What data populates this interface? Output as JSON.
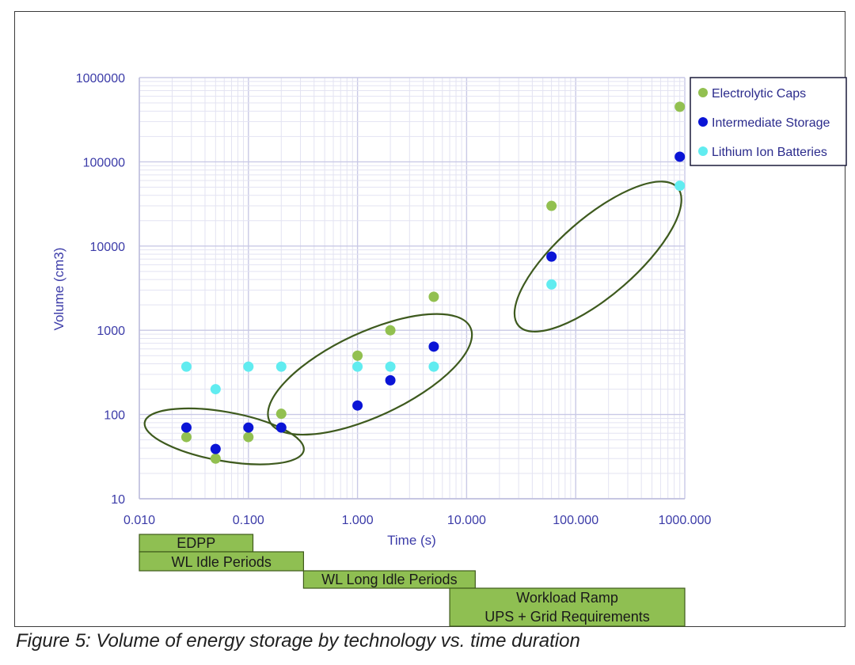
{
  "caption": "Figure 5: Volume of energy storage by technology vs. time duration",
  "chart_data": {
    "type": "scatter",
    "xscale": "log",
    "yscale": "log",
    "xlabel": "Time (s)",
    "ylabel": "Volume (cm3)",
    "xlim": [
      0.01,
      1000
    ],
    "ylim": [
      10,
      1000000
    ],
    "xticks": [
      "0.010",
      "0.100",
      "1.000",
      "10.000",
      "100.000",
      "1000.000"
    ],
    "yticks": [
      "10",
      "100",
      "1000",
      "10000",
      "100000",
      "1000000"
    ],
    "legend_position": "top-right",
    "series": [
      {
        "name": "Electrolytic Caps",
        "color": "#92c050",
        "points": [
          [
            0.027,
            54
          ],
          [
            0.05,
            30
          ],
          [
            0.1,
            54
          ],
          [
            0.2,
            102
          ],
          [
            1.0,
            500
          ],
          [
            2.0,
            1000
          ],
          [
            5.0,
            2500
          ],
          [
            60,
            30000
          ],
          [
            900,
            450000
          ]
        ]
      },
      {
        "name": "Intermediate Storage",
        "color": "#0a14d6",
        "points": [
          [
            0.027,
            70
          ],
          [
            0.05,
            39
          ],
          [
            0.1,
            70
          ],
          [
            0.2,
            70
          ],
          [
            1.0,
            128
          ],
          [
            2.0,
            255
          ],
          [
            5.0,
            640
          ],
          [
            60,
            7500
          ],
          [
            900,
            115000
          ]
        ]
      },
      {
        "name": "Lithium Ion Batteries",
        "color": "#61ecf0",
        "points": [
          [
            0.027,
            370
          ],
          [
            0.05,
            200
          ],
          [
            0.1,
            370
          ],
          [
            0.2,
            370
          ],
          [
            1.0,
            370
          ],
          [
            2.0,
            370
          ],
          [
            5.0,
            370
          ],
          [
            60,
            3500
          ],
          [
            900,
            52000
          ]
        ]
      }
    ],
    "ellipses": [
      {
        "center": [
          0.06,
          55
        ],
        "label": "group-1"
      },
      {
        "center": [
          1.3,
          300
        ],
        "label": "group-2"
      },
      {
        "center": [
          160,
          7500
        ],
        "label": "group-3"
      }
    ],
    "time_bands": [
      {
        "label": "EDPP",
        "x_start": 0.01,
        "x_end": 0.11
      },
      {
        "label": "WL Idle Periods",
        "x_start": 0.01,
        "x_end": 0.32
      },
      {
        "label": "WL Long Idle Periods",
        "x_start": 0.32,
        "x_end": 12
      },
      {
        "label": "Workload Ramp",
        "label2": "UPS + Grid Requirements",
        "x_start": 7,
        "x_end": 1000
      }
    ]
  }
}
